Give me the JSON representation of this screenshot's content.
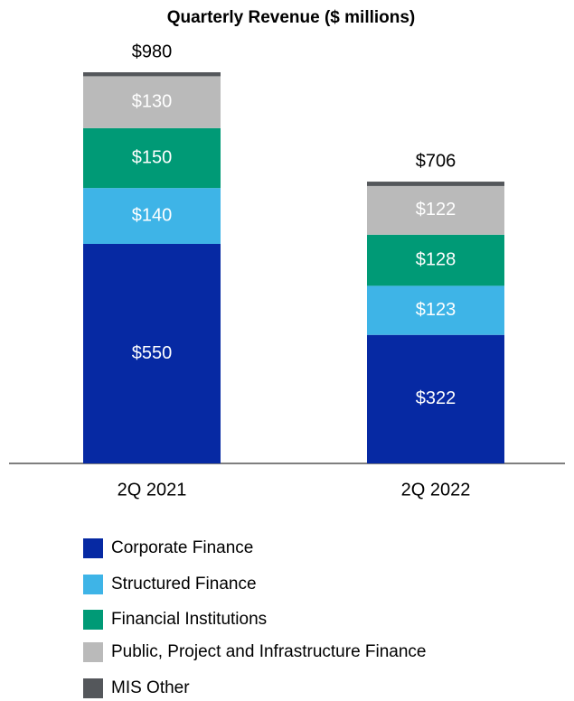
{
  "chart_data": {
    "type": "stacked_bar",
    "title": "Quarterly Revenue ($ millions)",
    "categories": [
      "2Q 2021",
      "2Q 2022"
    ],
    "series": [
      {
        "name": "Corporate Finance",
        "color": "#0629a3",
        "values": [
          550,
          322
        ],
        "value_labels": [
          "$550",
          "$322"
        ]
      },
      {
        "name": "Structured Finance",
        "color": "#3eb4e7",
        "values": [
          140,
          123
        ],
        "value_labels": [
          "$140",
          "$123"
        ]
      },
      {
        "name": "Financial Institutions",
        "color": "#009a76",
        "values": [
          150,
          128
        ],
        "value_labels": [
          "$150",
          "$128"
        ]
      },
      {
        "name": "Public, Project and Infrastructure Finance",
        "color": "#bababa",
        "values": [
          130,
          122
        ],
        "value_labels": [
          "$130",
          "$122"
        ]
      },
      {
        "name": "MIS Other",
        "color": "#54575b",
        "values": [
          10,
          11
        ],
        "value_labels": [
          null,
          null
        ]
      }
    ],
    "totals": [
      980,
      706
    ],
    "total_labels": [
      "$980",
      "$706"
    ]
  }
}
